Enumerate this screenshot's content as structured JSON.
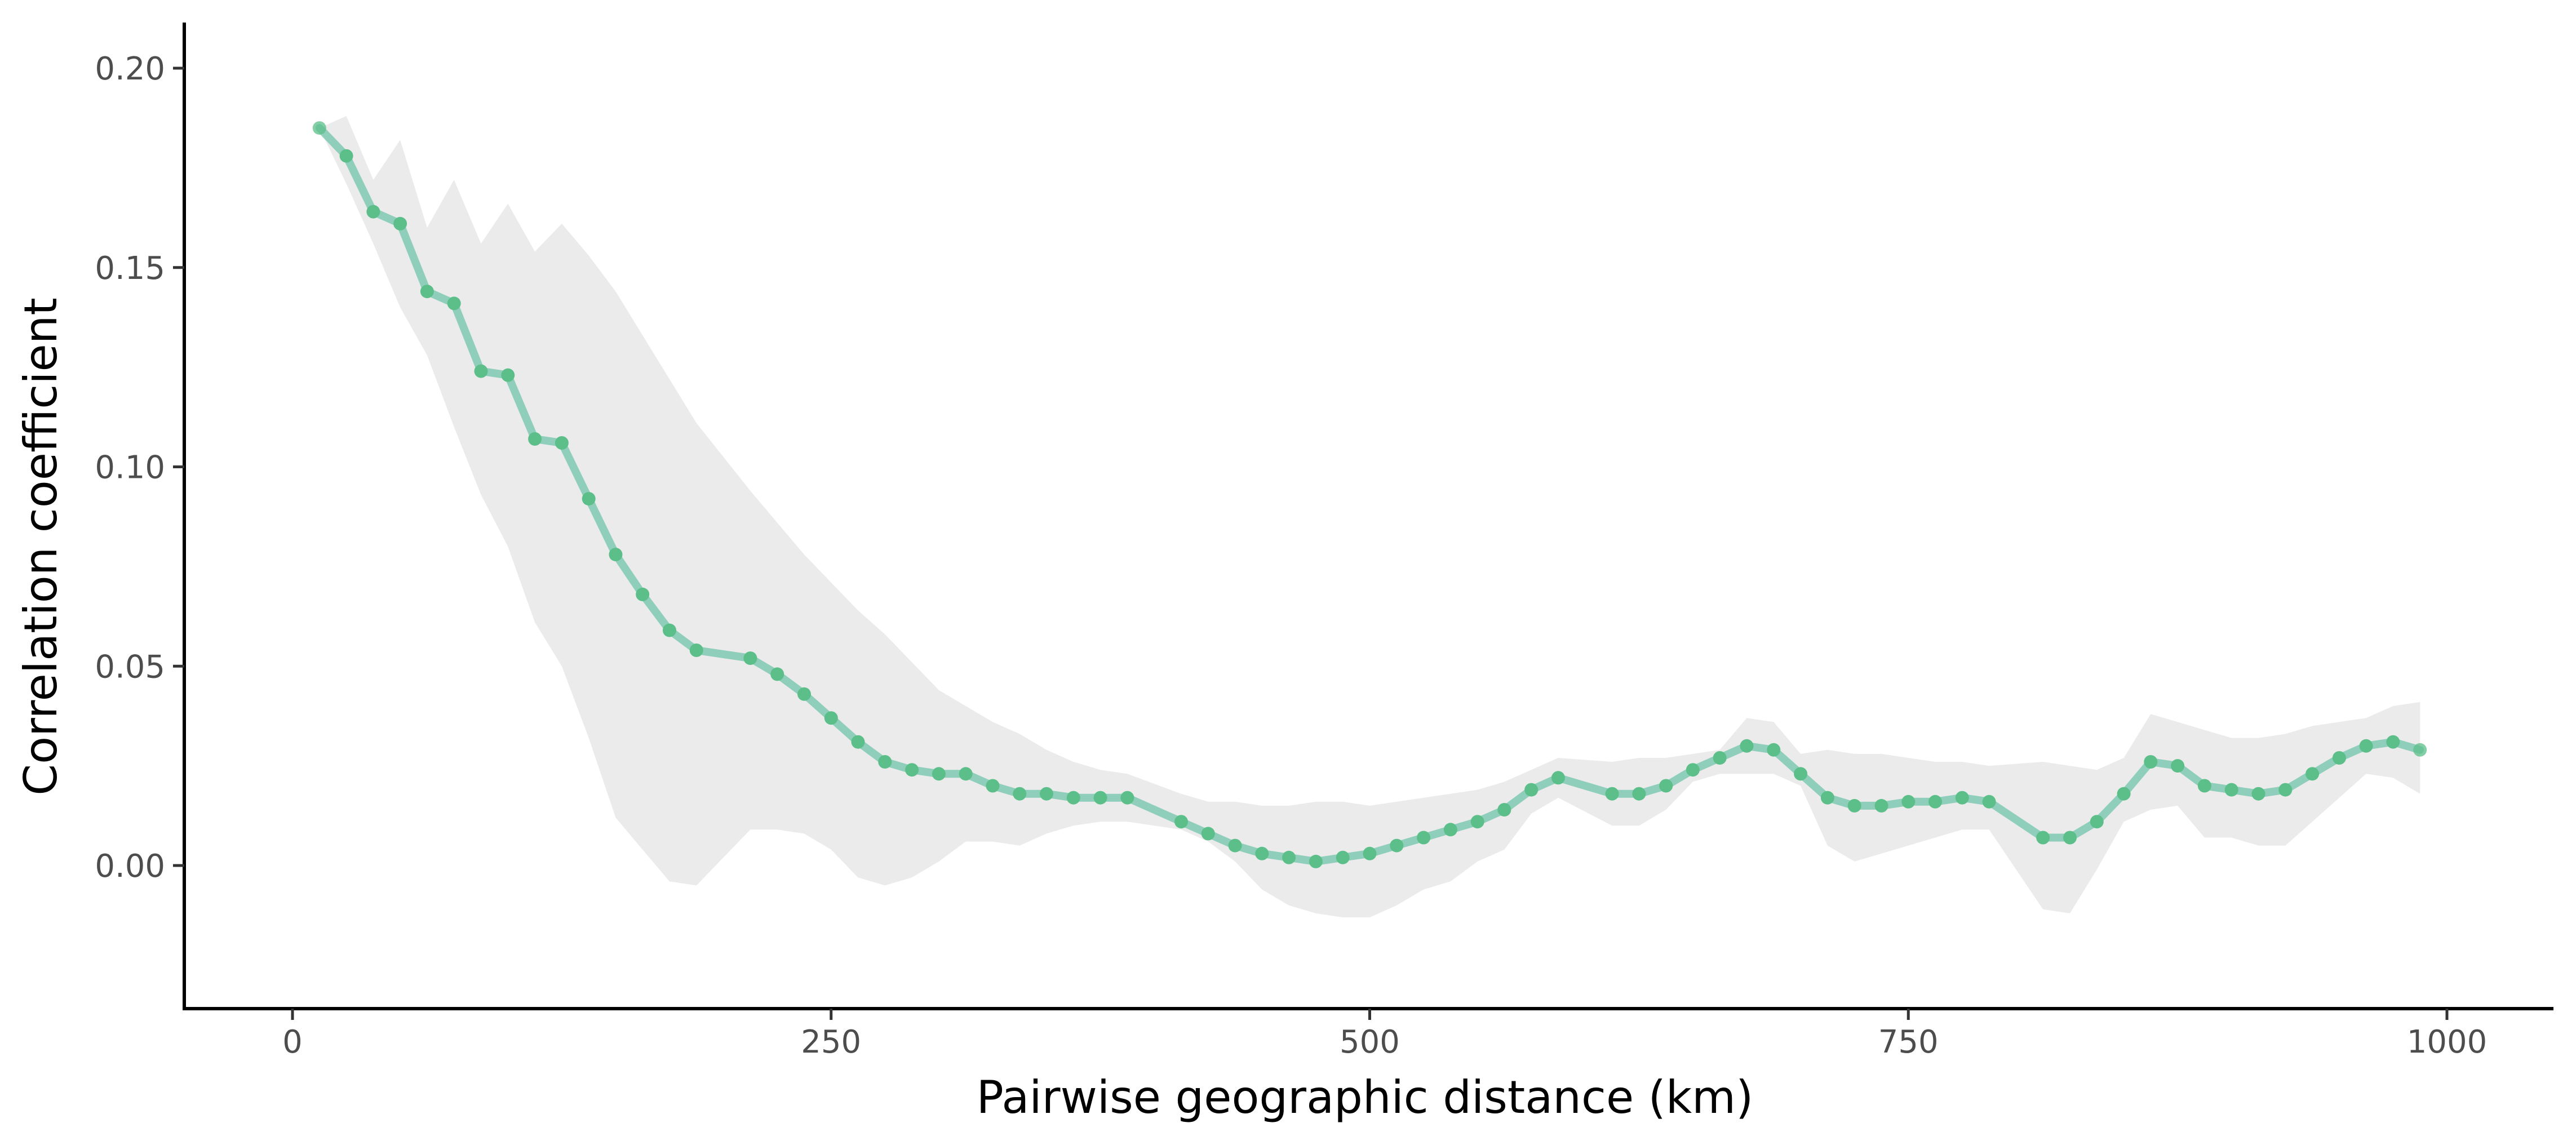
{
  "chart_data": {
    "type": "line",
    "xlabel": "Pairwise geographic distance (km)",
    "ylabel": "Correlation coefficient",
    "xlim": [
      -50,
      1050
    ],
    "ylim": [
      -0.035,
      0.21
    ],
    "xticks": [
      0,
      250,
      500,
      750,
      1000
    ],
    "yticks": [
      0.0,
      0.05,
      0.1,
      0.15,
      0.2
    ],
    "xtick_labels": [
      "0",
      "250",
      "500",
      "750",
      "1000"
    ],
    "ytick_labels": [
      "0.00",
      "0.05",
      "0.10",
      "0.15",
      "0.20"
    ],
    "grid": false,
    "legend": "none",
    "colors": {
      "line": "#66c2a5",
      "point": "#5cbf8a",
      "band": "#ebebeb",
      "axis": "#000000"
    },
    "series": [
      {
        "x": [
          12.5,
          25,
          37.5,
          50,
          62.5,
          75,
          87.5,
          100,
          112.5,
          125,
          137.5,
          150,
          162.5,
          175,
          187.5,
          212.5,
          225,
          237.5,
          250,
          262.5,
          275,
          287.5,
          300,
          312.5,
          325,
          337.5,
          350,
          362.5,
          375,
          387.5,
          412.5,
          425,
          437.5,
          450,
          462.5,
          475,
          487.5,
          500,
          512.5,
          525,
          537.5,
          550,
          562.5,
          575,
          587.5,
          612.5,
          625,
          637.5,
          650,
          662.5,
          675,
          687.5,
          700,
          712.5,
          725,
          737.5,
          750,
          762.5,
          775,
          787.5,
          812.5,
          825,
          837.5,
          850,
          862.5,
          875,
          887.5,
          900,
          912.5,
          925,
          937.5,
          950,
          962.5,
          975,
          987.5
        ],
        "y": [
          0.185,
          0.178,
          0.164,
          0.161,
          0.144,
          0.141,
          0.124,
          0.123,
          0.107,
          0.106,
          0.092,
          0.078,
          0.068,
          0.059,
          0.054,
          0.052,
          0.048,
          0.043,
          0.037,
          0.031,
          0.026,
          0.024,
          0.023,
          0.023,
          0.02,
          0.018,
          0.018,
          0.017,
          0.017,
          0.017,
          0.011,
          0.008,
          0.005,
          0.003,
          0.002,
          0.001,
          0.002,
          0.003,
          0.005,
          0.007,
          0.009,
          0.011,
          0.014,
          0.019,
          0.022,
          0.018,
          0.018,
          0.02,
          0.024,
          0.027,
          0.03,
          0.029,
          0.023,
          0.017,
          0.015,
          0.015,
          0.016,
          0.016,
          0.017,
          0.016,
          0.007,
          0.007,
          0.011,
          0.018,
          0.026,
          0.025,
          0.02,
          0.019,
          0.018,
          0.019,
          0.023,
          0.027,
          0.03,
          0.031,
          0.029
        ],
        "upper": [
          0.185,
          0.188,
          0.172,
          0.182,
          0.16,
          0.172,
          0.156,
          0.166,
          0.154,
          0.161,
          0.153,
          0.144,
          0.133,
          0.122,
          0.111,
          0.094,
          0.086,
          0.078,
          0.071,
          0.064,
          0.058,
          0.051,
          0.044,
          0.04,
          0.036,
          0.033,
          0.029,
          0.026,
          0.024,
          0.023,
          0.018,
          0.016,
          0.016,
          0.015,
          0.015,
          0.016,
          0.016,
          0.015,
          0.016,
          0.017,
          0.018,
          0.019,
          0.021,
          0.024,
          0.027,
          0.026,
          0.027,
          0.027,
          0.028,
          0.029,
          0.037,
          0.036,
          0.028,
          0.029,
          0.028,
          0.028,
          0.027,
          0.026,
          0.026,
          0.025,
          0.026,
          0.025,
          0.024,
          0.027,
          0.038,
          0.036,
          0.034,
          0.032,
          0.032,
          0.033,
          0.035,
          0.036,
          0.037,
          0.04,
          0.041
        ],
        "lower": [
          0.185,
          0.171,
          0.156,
          0.14,
          0.128,
          0.11,
          0.093,
          0.08,
          0.061,
          0.05,
          0.032,
          0.012,
          0.004,
          -0.004,
          -0.005,
          0.009,
          0.009,
          0.008,
          0.004,
          -0.003,
          -0.005,
          -0.003,
          0.001,
          0.006,
          0.006,
          0.005,
          0.008,
          0.01,
          0.011,
          0.011,
          0.009,
          0.006,
          0.001,
          -0.006,
          -0.01,
          -0.012,
          -0.013,
          -0.013,
          -0.01,
          -0.006,
          -0.004,
          0.001,
          0.004,
          0.013,
          0.017,
          0.01,
          0.01,
          0.014,
          0.021,
          0.023,
          0.023,
          0.023,
          0.02,
          0.005,
          0.001,
          0.003,
          0.005,
          0.007,
          0.009,
          0.009,
          -0.011,
          -0.012,
          -0.001,
          0.011,
          0.014,
          0.015,
          0.007,
          0.007,
          0.005,
          0.005,
          0.011,
          0.017,
          0.023,
          0.022,
          0.018
        ]
      }
    ]
  }
}
